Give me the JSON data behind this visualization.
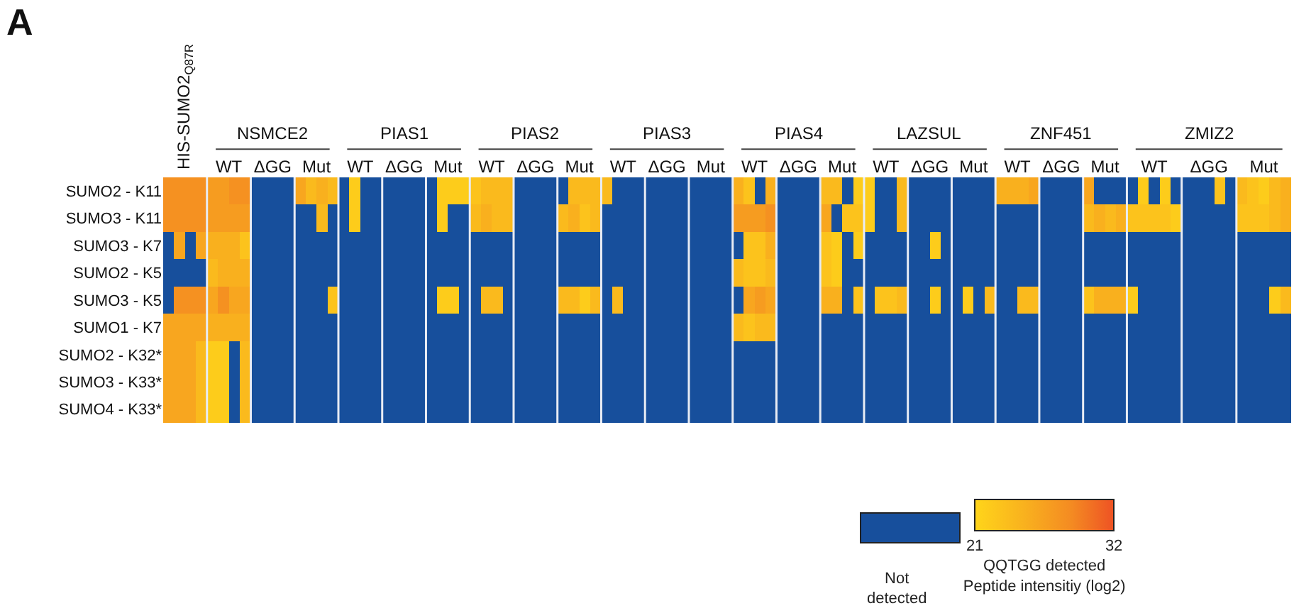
{
  "chart_data": {
    "type": "heatmap",
    "title": "A",
    "categories": [
      null,
      null,
      null,
      null,
      "WT",
      null,
      null,
      null,
      "ΔGG",
      null,
      null,
      null,
      "Mut",
      null,
      null,
      null,
      "WT",
      null,
      null,
      null,
      "ΔGG",
      null,
      null,
      null,
      "Mut",
      null,
      null,
      null,
      "WT",
      null,
      null,
      null,
      "ΔGG",
      null,
      null,
      null,
      "Mut",
      null,
      null,
      null,
      "WT",
      null,
      null,
      null,
      "ΔGG",
      null,
      null,
      null,
      "Mut",
      null,
      null,
      null,
      "WT",
      null,
      null,
      null,
      "ΔGG",
      null,
      null,
      null,
      "Mut",
      null,
      null,
      null,
      "WT",
      null,
      null,
      null,
      "ΔGG",
      null,
      null,
      null,
      "Mut",
      null,
      null,
      null,
      "WT",
      null,
      null,
      null,
      "ΔGG",
      null,
      null,
      null,
      "Mut",
      null,
      null,
      null,
      "WT",
      null,
      null,
      null,
      null,
      "ΔGG",
      null,
      null,
      null,
      null,
      "Mut",
      null,
      null,
      null,
      null
    ],
    "y_categories": [
      "SUMO2 - K11",
      "SUMO3 - K11",
      "SUMO3 - K7",
      "SUMO2 - K5",
      "SUMO3 - K5",
      "SUMO1 - K7",
      "SUMO2 - K32*",
      "SUMO3 - K33*",
      "SUMO4 - K33*"
    ],
    "cells": [
      [
        28,
        28,
        28,
        28,
        27,
        27,
        28,
        28,
        null,
        null,
        null,
        null,
        26,
        24,
        25,
        24,
        null,
        22,
        null,
        null,
        null,
        null,
        null,
        null,
        null,
        22,
        22,
        22,
        23,
        24,
        24,
        24,
        null,
        null,
        null,
        null,
        null,
        24,
        24,
        24,
        24,
        null,
        null,
        null,
        null,
        null,
        null,
        null,
        null,
        null,
        null,
        null,
        25,
        23,
        null,
        25,
        null,
        null,
        null,
        null,
        24,
        24,
        null,
        22,
        22,
        null,
        null,
        24,
        null,
        null,
        null,
        null,
        null,
        null,
        null,
        null,
        25,
        25,
        25,
        26,
        null,
        null,
        null,
        null,
        26,
        null,
        null,
        null,
        null,
        22,
        null,
        22,
        null,
        null,
        null,
        null,
        23,
        null,
        24,
        23,
        22,
        24,
        25
      ],
      [
        28,
        28,
        28,
        28,
        27,
        27,
        27,
        27,
        null,
        null,
        null,
        null,
        null,
        null,
        24,
        null,
        null,
        22,
        null,
        null,
        null,
        null,
        null,
        null,
        null,
        22,
        null,
        null,
        24,
        25,
        24,
        24,
        null,
        null,
        null,
        null,
        24,
        25,
        23,
        24,
        null,
        null,
        null,
        null,
        null,
        null,
        null,
        null,
        null,
        null,
        null,
        null,
        27,
        27,
        27,
        28,
        null,
        null,
        null,
        null,
        26,
        null,
        23,
        23,
        22,
        null,
        null,
        24,
        null,
        null,
        null,
        null,
        null,
        null,
        null,
        null,
        null,
        null,
        null,
        null,
        null,
        null,
        null,
        null,
        24,
        25,
        24,
        25,
        23,
        23,
        23,
        23,
        22,
        null,
        null,
        null,
        null,
        null,
        23,
        23,
        23,
        24,
        25
      ],
      [
        null,
        26,
        null,
        26,
        25,
        25,
        25,
        23,
        null,
        null,
        null,
        null,
        null,
        null,
        null,
        null,
        null,
        null,
        null,
        null,
        null,
        null,
        null,
        null,
        null,
        null,
        null,
        null,
        null,
        null,
        null,
        null,
        null,
        null,
        null,
        null,
        null,
        null,
        null,
        null,
        null,
        null,
        null,
        null,
        null,
        null,
        null,
        null,
        null,
        null,
        null,
        null,
        null,
        23,
        23,
        25,
        null,
        null,
        null,
        null,
        23,
        22,
        null,
        22,
        null,
        null,
        null,
        null,
        null,
        null,
        22,
        null,
        null,
        null,
        null,
        null,
        null,
        null,
        null,
        null,
        null,
        null,
        null,
        null,
        null,
        null,
        null,
        null,
        null,
        null,
        null,
        null,
        null,
        null,
        null,
        null,
        null,
        null,
        null,
        null,
        null,
        null,
        null
      ],
      [
        null,
        null,
        null,
        null,
        24,
        25,
        25,
        25,
        null,
        null,
        null,
        null,
        null,
        null,
        null,
        null,
        null,
        null,
        null,
        null,
        null,
        null,
        null,
        null,
        null,
        null,
        null,
        null,
        null,
        null,
        null,
        null,
        null,
        null,
        null,
        null,
        null,
        null,
        null,
        null,
        null,
        null,
        null,
        null,
        null,
        null,
        null,
        null,
        null,
        null,
        null,
        null,
        24,
        23,
        23,
        24,
        null,
        null,
        null,
        null,
        23,
        22,
        null,
        null,
        null,
        null,
        null,
        null,
        null,
        null,
        null,
        null,
        null,
        null,
        null,
        null,
        null,
        null,
        null,
        null,
        null,
        null,
        null,
        null,
        null,
        null,
        null,
        null,
        null,
        null,
        null,
        null,
        null,
        null,
        null,
        null,
        null,
        null,
        null,
        null,
        null,
        null,
        null
      ],
      [
        null,
        28,
        28,
        28,
        26,
        28,
        26,
        26,
        null,
        null,
        null,
        null,
        null,
        null,
        null,
        23,
        null,
        null,
        null,
        null,
        null,
        null,
        null,
        null,
        null,
        22,
        22,
        null,
        null,
        24,
        24,
        null,
        null,
        null,
        null,
        null,
        24,
        24,
        22,
        24,
        null,
        24,
        null,
        null,
        null,
        null,
        null,
        null,
        null,
        null,
        null,
        null,
        null,
        26,
        27,
        26,
        null,
        null,
        null,
        null,
        25,
        25,
        null,
        23,
        null,
        23,
        23,
        24,
        null,
        null,
        22,
        null,
        null,
        22,
        null,
        24,
        null,
        null,
        24,
        24,
        null,
        null,
        null,
        null,
        23,
        25,
        25,
        25,
        22,
        null,
        null,
        null,
        null,
        null,
        null,
        null,
        null,
        null,
        null,
        null,
        null,
        22,
        24
      ],
      [
        26,
        26,
        26,
        26,
        25,
        25,
        25,
        25,
        null,
        null,
        null,
        null,
        null,
        null,
        null,
        null,
        null,
        null,
        null,
        null,
        null,
        null,
        null,
        null,
        null,
        null,
        null,
        null,
        null,
        null,
        null,
        null,
        null,
        null,
        null,
        null,
        null,
        null,
        null,
        null,
        null,
        null,
        null,
        null,
        null,
        null,
        null,
        null,
        null,
        null,
        null,
        null,
        24,
        23,
        24,
        24,
        null,
        null,
        null,
        null,
        null,
        null,
        null,
        null,
        null,
        null,
        null,
        null,
        null,
        null,
        null,
        null,
        null,
        null,
        null,
        null,
        null,
        null,
        null,
        null,
        null,
        null,
        null,
        null,
        null,
        null,
        null,
        null,
        null,
        null,
        null,
        null,
        null,
        null,
        null,
        null,
        null,
        null,
        null,
        null,
        null,
        null,
        null
      ],
      [
        26,
        26,
        26,
        24,
        22,
        22,
        null,
        24,
        null,
        null,
        null,
        null,
        null,
        null,
        null,
        null,
        null,
        null,
        null,
        null,
        null,
        null,
        null,
        null,
        null,
        null,
        null,
        null,
        null,
        null,
        null,
        null,
        null,
        null,
        null,
        null,
        null,
        null,
        null,
        null,
        null,
        null,
        null,
        null,
        null,
        null,
        null,
        null,
        null,
        null,
        null,
        null,
        null,
        null,
        null,
        null,
        null,
        null,
        null,
        null,
        null,
        null,
        null,
        null,
        null,
        null,
        null,
        null,
        null,
        null,
        null,
        null,
        null,
        null,
        null,
        null,
        null,
        null,
        null,
        null,
        null,
        null,
        null,
        null,
        null,
        null,
        null,
        null,
        null,
        null,
        null,
        null,
        null,
        null,
        null,
        null,
        null,
        null,
        null,
        null,
        null,
        null,
        null
      ],
      [
        26,
        26,
        26,
        24,
        22,
        22,
        null,
        24,
        null,
        null,
        null,
        null,
        null,
        null,
        null,
        null,
        null,
        null,
        null,
        null,
        null,
        null,
        null,
        null,
        null,
        null,
        null,
        null,
        null,
        null,
        null,
        null,
        null,
        null,
        null,
        null,
        null,
        null,
        null,
        null,
        null,
        null,
        null,
        null,
        null,
        null,
        null,
        null,
        null,
        null,
        null,
        null,
        null,
        null,
        null,
        null,
        null,
        null,
        null,
        null,
        null,
        null,
        null,
        null,
        null,
        null,
        null,
        null,
        null,
        null,
        null,
        null,
        null,
        null,
        null,
        null,
        null,
        null,
        null,
        null,
        null,
        null,
        null,
        null,
        null,
        null,
        null,
        null,
        null,
        null,
        null,
        null,
        null,
        null,
        null,
        null,
        null,
        null,
        null,
        null,
        null,
        null,
        null
      ],
      [
        26,
        26,
        26,
        24,
        22,
        22,
        null,
        24,
        null,
        null,
        null,
        null,
        null,
        null,
        null,
        null,
        null,
        null,
        null,
        null,
        null,
        null,
        null,
        null,
        null,
        null,
        null,
        null,
        null,
        null,
        null,
        null,
        null,
        null,
        null,
        null,
        null,
        null,
        null,
        null,
        null,
        null,
        null,
        null,
        null,
        null,
        null,
        null,
        null,
        null,
        null,
        null,
        null,
        null,
        null,
        null,
        null,
        null,
        null,
        null,
        null,
        null,
        null,
        null,
        null,
        null,
        null,
        null,
        null,
        null,
        null,
        null,
        null,
        null,
        null,
        null,
        null,
        null,
        null,
        null,
        null,
        null,
        null,
        null,
        null,
        null,
        null,
        null,
        null,
        null,
        null,
        null,
        null,
        null,
        null,
        null,
        null,
        null,
        null,
        null,
        null,
        null,
        null
      ]
    ],
    "clim": [
      21,
      32
    ],
    "cticks": [
      21,
      32
    ],
    "clabel": "QQTGG detected\nPeptide intensitiy (log2)",
    "annotations": [
      "HIS-SUMO2$_{Q87R}$",
      "NSMCE2",
      "PIAS1",
      "PIAS2",
      "PIAS3",
      "PIAS4",
      "LAZSUL",
      "ZNF451",
      "ZMIZ2",
      "Not detected"
    ]
  }
}
